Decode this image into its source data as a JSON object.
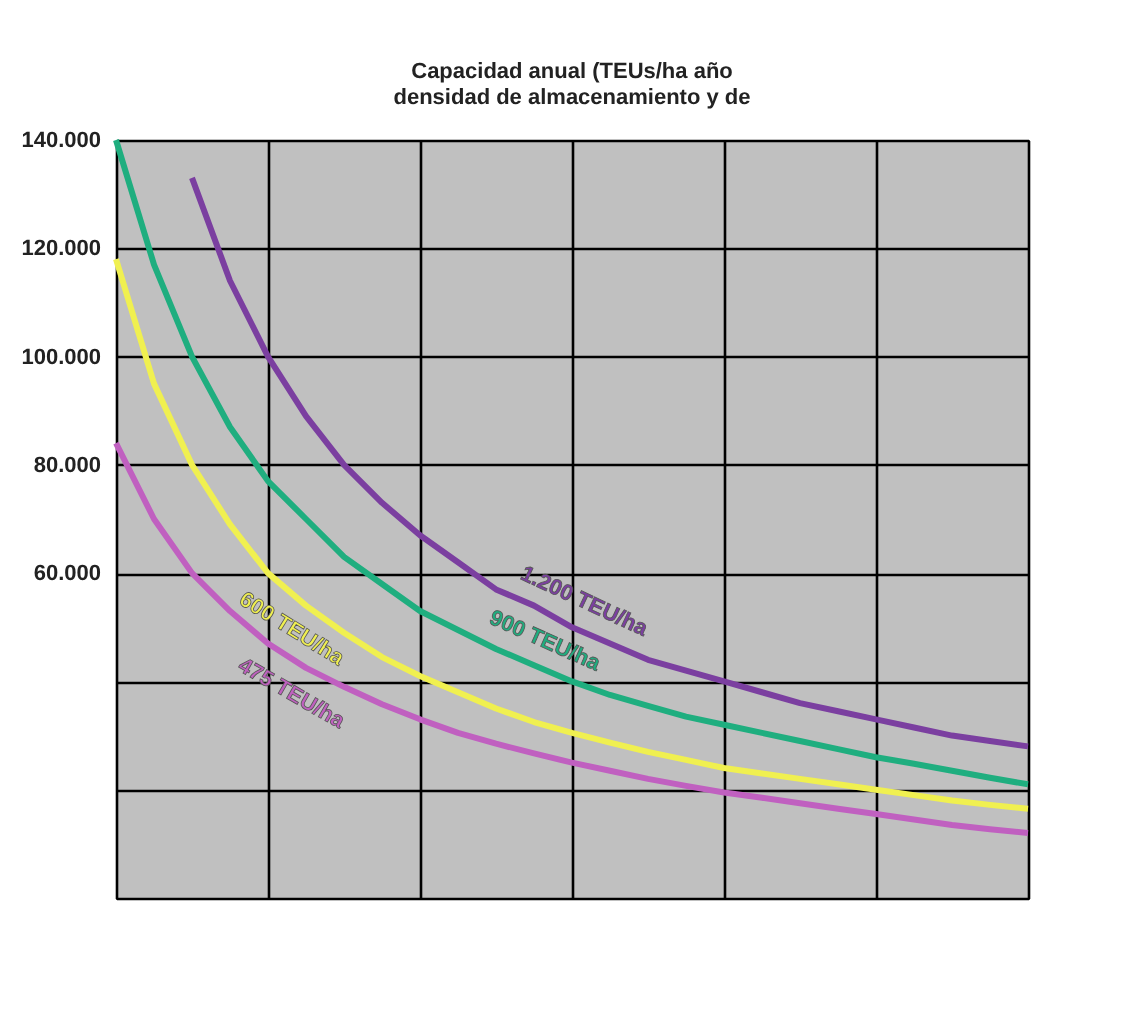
{
  "chart_data": {
    "type": "line",
    "title": "Capacidad anual (TEUs/ha año\ndensidad de almacenamiento  y de",
    "categories": [
      null,
      null,
      null,
      null,
      null,
      null,
      null,
      null,
      null,
      null,
      null,
      null,
      null,
      null,
      null,
      null,
      null,
      null,
      null,
      null,
      null,
      null,
      null,
      null,
      null
    ],
    "ylim": [
      0,
      140000
    ],
    "yticks": [
      {
        "value": 0,
        "label": null
      },
      {
        "value": 20000,
        "label": null
      },
      {
        "value": 40000,
        "label": null
      },
      {
        "value": 60000,
        "label": "60.000"
      },
      {
        "value": 80000,
        "label": "80.000"
      },
      {
        "value": 100000,
        "label": "100.000"
      },
      {
        "value": 120000,
        "label": "120.000"
      },
      {
        "value": 140000,
        "label": "140.000"
      }
    ],
    "tick_labels": "y",
    "grid": true,
    "legend": false,
    "marker": "none",
    "line_style": "solid",
    "series": [
      {
        "name": "1.200 TEU/ha",
        "color": "#7b3fa0",
        "values": [
          null,
          null,
          133000,
          114000,
          100000,
          89000,
          80000,
          73000,
          67000,
          62000,
          57000,
          54000,
          50000,
          47000,
          44000,
          42000,
          40000,
          38000,
          36000,
          34500,
          33000,
          31500,
          30000,
          29000,
          28000
        ]
      },
      {
        "name": "900 TEU/ha",
        "color": "#1fae7f",
        "values": [
          140000,
          117000,
          100000,
          87000,
          77000,
          70000,
          63000,
          58000,
          53000,
          49500,
          46000,
          43000,
          40000,
          37500,
          35500,
          33500,
          32000,
          30500,
          29000,
          27500,
          26000,
          24800,
          23500,
          22200,
          21000
        ]
      },
      {
        "name": "600 TEU/ha",
        "color": "#f0f050",
        "values": [
          118000,
          95000,
          80000,
          69000,
          60000,
          54000,
          49000,
          44500,
          41000,
          38000,
          35000,
          32500,
          30500,
          28700,
          27000,
          25500,
          24000,
          23000,
          22000,
          21000,
          20000,
          19000,
          18000,
          17200,
          16500
        ]
      },
      {
        "name": "475 TEU/ha",
        "color": "#c060c0",
        "values": [
          84000,
          70000,
          60000,
          53000,
          47000,
          42500,
          39000,
          35800,
          33000,
          30500,
          28500,
          26700,
          25000,
          23500,
          22000,
          20700,
          19500,
          18500,
          17500,
          16500,
          15500,
          14500,
          13500,
          12700,
          12000
        ]
      }
    ]
  }
}
